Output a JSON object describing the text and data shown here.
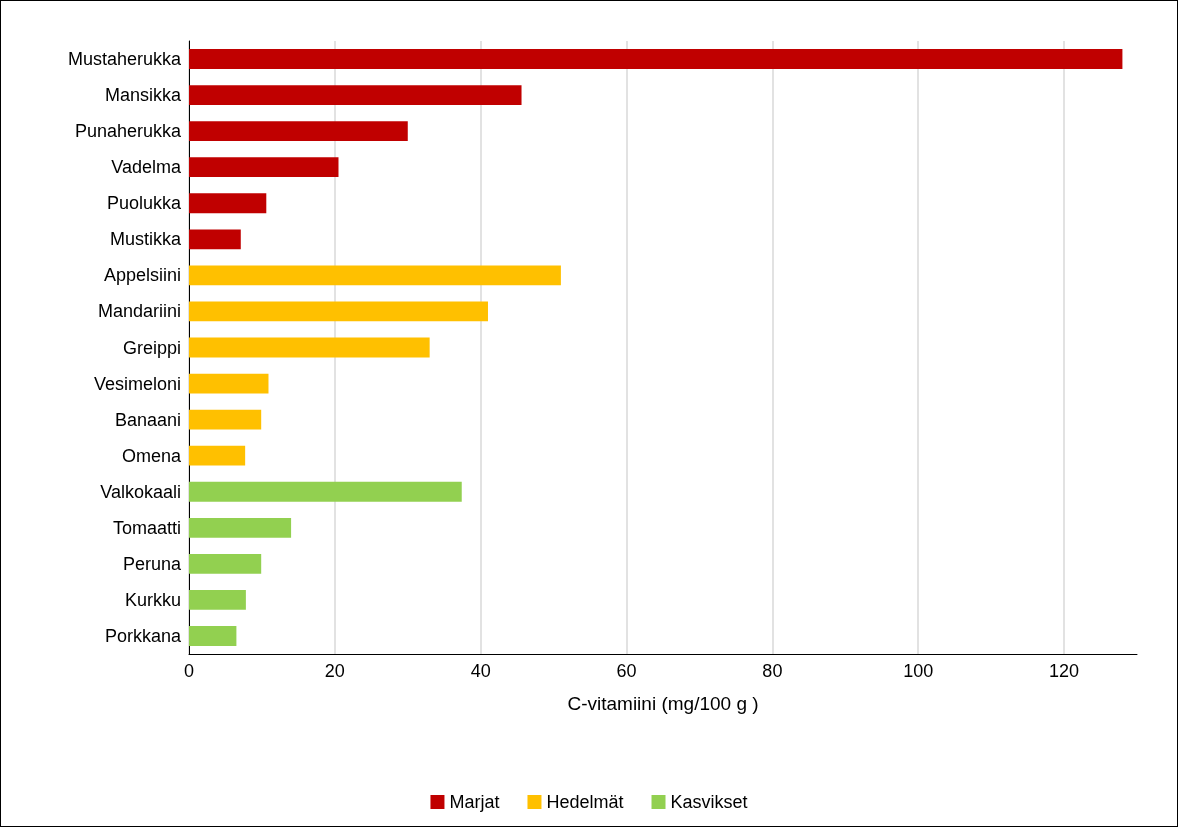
{
  "chart_data": {
    "type": "bar",
    "orientation": "horizontal",
    "stacked": true,
    "xlabel": "C-vitamiini (mg/100 g )",
    "categories": [
      "Mustaherukka",
      "Mansikka",
      "Punaherukka",
      "Vadelma",
      "Puolukka",
      "Mustikka",
      "Appelsiini",
      "Mandariini",
      "Greippi",
      "Vesimeloni",
      "Banaani",
      "Omena",
      "Valkokaali",
      "Tomaatti",
      "Peruna",
      "Kurkku",
      "Porkkana"
    ],
    "series": [
      {
        "name": "Marjat",
        "color": "#c00000",
        "values": [
          128,
          45.6,
          30,
          20.5,
          10.6,
          7.1,
          null,
          null,
          null,
          null,
          null,
          null,
          null,
          null,
          null,
          null,
          null
        ]
      },
      {
        "name": "Hedelmät",
        "color": "#ffc000",
        "values": [
          null,
          null,
          null,
          null,
          null,
          null,
          51,
          41,
          33,
          10.9,
          9.9,
          7.7,
          null,
          null,
          null,
          null,
          null
        ]
      },
      {
        "name": "Kasvikset",
        "color": "#92d050",
        "values": [
          null,
          null,
          null,
          null,
          null,
          null,
          null,
          null,
          null,
          null,
          null,
          null,
          37.4,
          14,
          9.9,
          7.8,
          6.5
        ]
      }
    ],
    "xlim": [
      0,
      130
    ],
    "xticks": [
      0,
      20,
      40,
      60,
      80,
      100,
      120
    ],
    "grid": "x",
    "legend": "bottom"
  }
}
